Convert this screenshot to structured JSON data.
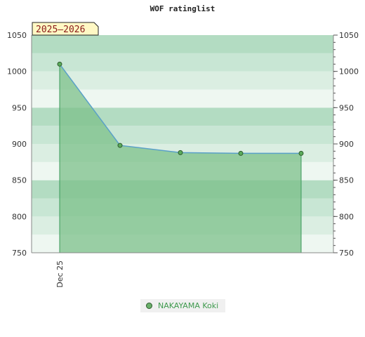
{
  "chart_data": {
    "type": "area",
    "title": "WOF ratinglist",
    "annotation": "2025–2026",
    "x": [
      "Dec 25",
      "",
      "",
      "",
      ""
    ],
    "series": [
      {
        "name": "NAKAYAMA Koki",
        "values": [
          1010,
          898,
          888,
          887,
          887
        ]
      }
    ],
    "ylim": [
      750,
      1050
    ],
    "yticks": [
      750,
      800,
      850,
      900,
      950,
      1000,
      1050
    ],
    "xtick_labels": [
      "Dec 25"
    ],
    "grid": true,
    "legend_position": "bottom",
    "colors": {
      "area": "#7cc08a",
      "line": "#5aa0c8",
      "marker": "#5bab5b",
      "band_dark": "#b3dcc2",
      "band_mid": "#c8e6d4",
      "band_light": "#dbeee2",
      "band_lightest": "#eef7f1"
    }
  }
}
